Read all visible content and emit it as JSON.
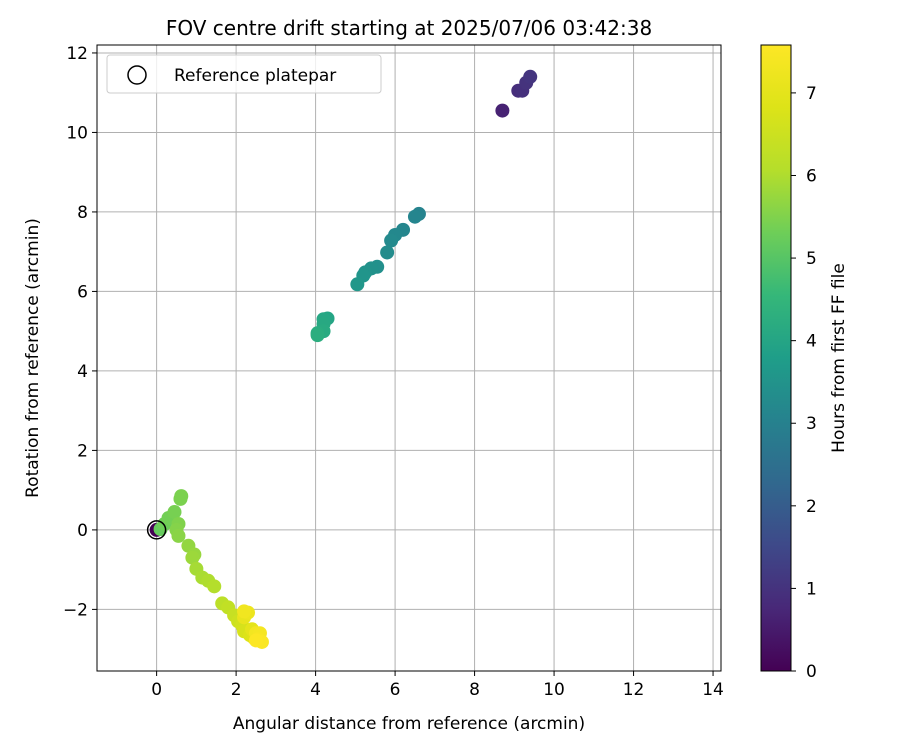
{
  "chart_data": {
    "type": "scatter",
    "title": "FOV centre drift starting at 2025/07/06 03:42:38",
    "xlabel": "Angular distance from reference (arcmin)",
    "ylabel": "Rotation from reference (arcmin)",
    "xlim": [
      -1.5,
      14.2
    ],
    "ylim": [
      -3.55,
      12.2
    ],
    "xticks": [
      0,
      2,
      4,
      6,
      8,
      10,
      12,
      14
    ],
    "yticks": [
      -2,
      0,
      2,
      4,
      6,
      8,
      10,
      12
    ],
    "xtick_labels": [
      "0",
      "2",
      "4",
      "6",
      "8",
      "10",
      "12",
      "14"
    ],
    "ytick_labels": [
      "−2",
      "0",
      "2",
      "4",
      "6",
      "8",
      "10",
      "12"
    ],
    "grid": true,
    "legend": {
      "position": "top-left",
      "entries": [
        "Reference platepar"
      ]
    },
    "reference_point": {
      "x": 0,
      "y": 0
    },
    "colorbar": {
      "label": "Hours from first FF file",
      "colormap": "viridis",
      "range": [
        0,
        7.58
      ],
      "ticks": [
        0,
        1,
        2,
        3,
        4,
        5,
        6,
        7
      ],
      "tick_labels": [
        "0",
        "1",
        "2",
        "3",
        "4",
        "5",
        "6",
        "7"
      ]
    },
    "points": [
      {
        "x": 0.0,
        "y": 0.0,
        "h": 0.0
      },
      {
        "x": 8.7,
        "y": 10.55,
        "h": 0.65
      },
      {
        "x": 9.1,
        "y": 11.05,
        "h": 0.9
      },
      {
        "x": 9.2,
        "y": 11.05,
        "h": 0.95
      },
      {
        "x": 9.3,
        "y": 11.25,
        "h": 1.0
      },
      {
        "x": 9.4,
        "y": 11.4,
        "h": 1.05
      },
      {
        "x": 6.6,
        "y": 7.95,
        "h": 3.05
      },
      {
        "x": 6.5,
        "y": 7.88,
        "h": 3.1
      },
      {
        "x": 6.2,
        "y": 7.55,
        "h": 3.15
      },
      {
        "x": 6.0,
        "y": 7.42,
        "h": 3.2
      },
      {
        "x": 5.9,
        "y": 7.28,
        "h": 3.25
      },
      {
        "x": 5.8,
        "y": 6.98,
        "h": 3.3
      },
      {
        "x": 5.55,
        "y": 6.62,
        "h": 3.4
      },
      {
        "x": 5.4,
        "y": 6.58,
        "h": 3.45
      },
      {
        "x": 5.25,
        "y": 6.48,
        "h": 3.5
      },
      {
        "x": 5.2,
        "y": 6.4,
        "h": 3.55
      },
      {
        "x": 5.05,
        "y": 6.18,
        "h": 3.6
      },
      {
        "x": 4.3,
        "y": 5.32,
        "h": 4.0
      },
      {
        "x": 4.2,
        "y": 5.3,
        "h": 4.05
      },
      {
        "x": 4.2,
        "y": 5.18,
        "h": 4.1
      },
      {
        "x": 4.2,
        "y": 5.0,
        "h": 4.15
      },
      {
        "x": 4.05,
        "y": 4.95,
        "h": 4.2
      },
      {
        "x": 4.05,
        "y": 4.9,
        "h": 4.25
      },
      {
        "x": 0.1,
        "y": 0.02,
        "h": 5.2
      },
      {
        "x": 0.2,
        "y": 0.15,
        "h": 5.3
      },
      {
        "x": 0.3,
        "y": 0.3,
        "h": 5.35
      },
      {
        "x": 0.45,
        "y": 0.45,
        "h": 5.4
      },
      {
        "x": 0.6,
        "y": 0.78,
        "h": 5.45
      },
      {
        "x": 0.62,
        "y": 0.85,
        "h": 5.45
      },
      {
        "x": 0.55,
        "y": 0.15,
        "h": 5.5
      },
      {
        "x": 0.5,
        "y": 0.0,
        "h": 5.55
      },
      {
        "x": 0.55,
        "y": -0.15,
        "h": 5.6
      },
      {
        "x": 0.8,
        "y": -0.4,
        "h": 5.7
      },
      {
        "x": 0.95,
        "y": -0.62,
        "h": 5.75
      },
      {
        "x": 0.9,
        "y": -0.7,
        "h": 5.8
      },
      {
        "x": 1.0,
        "y": -0.98,
        "h": 5.9
      },
      {
        "x": 1.15,
        "y": -1.2,
        "h": 5.95
      },
      {
        "x": 1.3,
        "y": -1.28,
        "h": 6.0
      },
      {
        "x": 1.45,
        "y": -1.42,
        "h": 6.05
      },
      {
        "x": 1.65,
        "y": -1.85,
        "h": 6.2
      },
      {
        "x": 1.8,
        "y": -1.95,
        "h": 6.3
      },
      {
        "x": 1.95,
        "y": -2.15,
        "h": 6.4
      },
      {
        "x": 2.05,
        "y": -2.3,
        "h": 6.5
      },
      {
        "x": 2.15,
        "y": -2.4,
        "h": 6.6
      },
      {
        "x": 2.2,
        "y": -2.55,
        "h": 6.7
      },
      {
        "x": 2.35,
        "y": -2.65,
        "h": 6.8
      },
      {
        "x": 2.45,
        "y": -2.72,
        "h": 6.9
      },
      {
        "x": 2.4,
        "y": -2.5,
        "h": 7.0
      },
      {
        "x": 2.2,
        "y": -2.2,
        "h": 7.1
      },
      {
        "x": 2.3,
        "y": -2.08,
        "h": 7.2
      },
      {
        "x": 2.2,
        "y": -2.05,
        "h": 7.3
      },
      {
        "x": 2.5,
        "y": -2.6,
        "h": 7.35
      },
      {
        "x": 2.6,
        "y": -2.6,
        "h": 7.4
      },
      {
        "x": 2.55,
        "y": -2.75,
        "h": 7.45
      },
      {
        "x": 2.65,
        "y": -2.82,
        "h": 7.5
      },
      {
        "x": 2.5,
        "y": -2.78,
        "h": 7.55
      }
    ]
  }
}
